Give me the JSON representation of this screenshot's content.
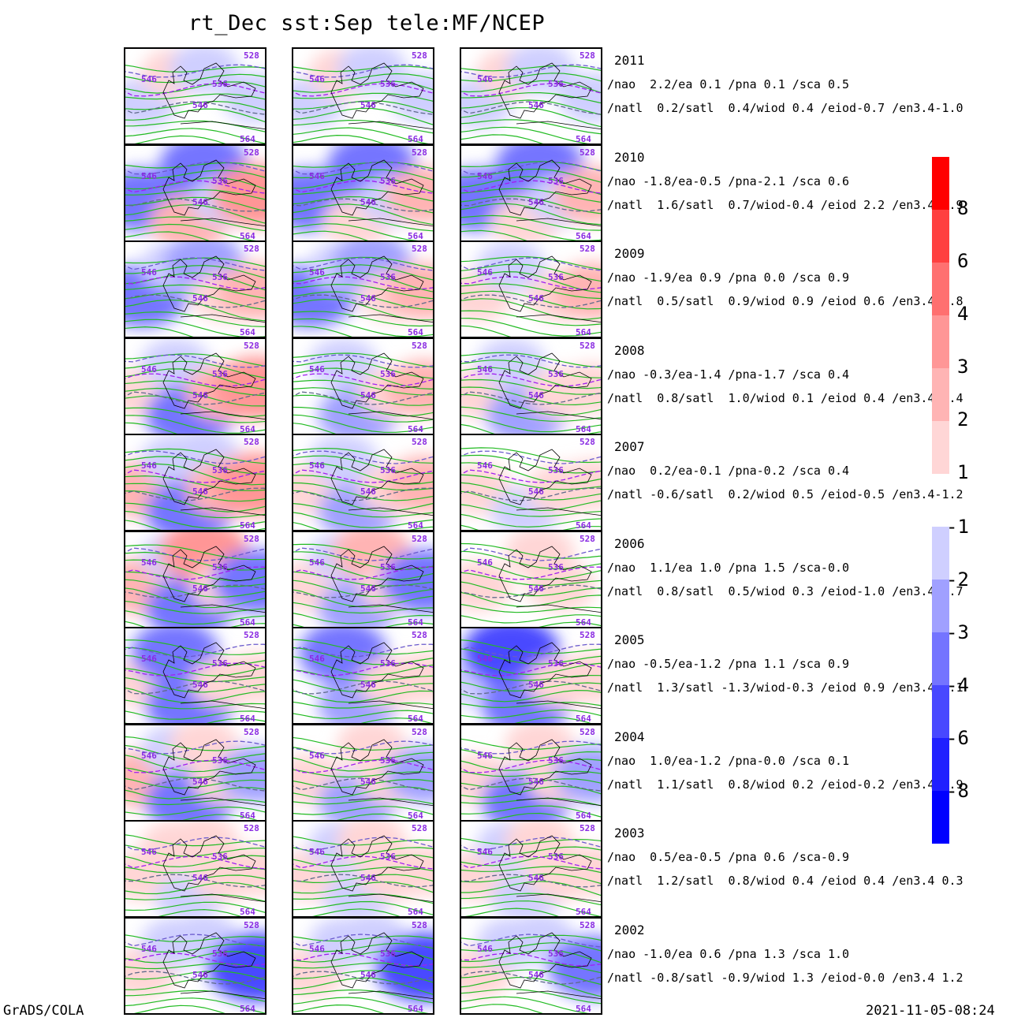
{
  "title": "rt_Dec  sst:Sep  tele:MF/NCEP",
  "footer": {
    "left": "GrADS/COLA",
    "right": "2021-11-05-08:24"
  },
  "chart_data": {
    "type": "heatmap",
    "columns": 3,
    "contour_labels": [
      "528",
      "536",
      "546",
      "564"
    ],
    "rows": [
      {
        "year": "2011",
        "line1": "/nao  2.2/ea 0.1 /pna 0.1 /sca 0.5",
        "line2": "/natl  0.2/satl  0.4/wiod 0.4 /eiod-0.7 /en3.4-1.0"
      },
      {
        "year": "2010",
        "line1": "/nao -1.8/ea-0.5 /pna-2.1 /sca 0.6",
        "line2": "/natl  1.6/satl  0.7/wiod-0.4 /eiod 2.2 /en3.4-1.9"
      },
      {
        "year": "2009",
        "line1": "/nao -1.9/ea 0.9 /pna 0.0 /sca 0.9",
        "line2": "/natl  0.5/satl  0.9/wiod 0.9 /eiod 0.6 /en3.4 0.8"
      },
      {
        "year": "2008",
        "line1": "/nao -0.3/ea-1.4 /pna-1.7 /sca 0.4",
        "line2": "/natl  0.8/satl  1.0/wiod 0.1 /eiod 0.4 /en3.4-0.4"
      },
      {
        "year": "2007",
        "line1": "/nao  0.2/ea-0.1 /pna-0.2 /sca 0.4",
        "line2": "/natl -0.6/satl  0.2/wiod 0.5 /eiod-0.5 /en3.4-1.2"
      },
      {
        "year": "2006",
        "line1": "/nao  1.1/ea 1.0 /pna 1.5 /sca-0.0",
        "line2": "/natl  0.8/satl  0.5/wiod 0.3 /eiod-1.0 /en3.4 0.7"
      },
      {
        "year": "2005",
        "line1": "/nao -0.5/ea-1.2 /pna 1.1 /sca 0.9",
        "line2": "/natl  1.3/satl -1.3/wiod-0.3 /eiod 0.9 /en3.4-0.1"
      },
      {
        "year": "2004",
        "line1": "/nao  1.0/ea-1.2 /pna-0.0 /sca 0.1",
        "line2": "/natl  1.1/satl  0.8/wiod 0.2 /eiod-0.2 /en3.4 0.9"
      },
      {
        "year": "2003",
        "line1": "/nao  0.5/ea-0.5 /pna 0.6 /sca-0.9",
        "line2": "/natl  1.2/satl  0.8/wiod 0.4 /eiod 0.4 /en3.4 0.3"
      },
      {
        "year": "2002",
        "line1": "/nao -1.0/ea 0.6 /pna 1.3 /sca 1.0",
        "line2": "/natl -0.8/satl -0.9/wiod 1.3 /eiod-0.0 /en3.4 1.2"
      }
    ],
    "anomaly_pattern": [
      [
        [
          -1,
          1,
          0,
          -1,
          0,
          -1
        ],
        [
          -1,
          1,
          0,
          -1,
          0,
          -1
        ],
        [
          -1,
          1,
          0,
          -1,
          0,
          -1
        ]
      ],
      [
        [
          -3,
          0,
          2,
          -3,
          -1,
          3
        ],
        [
          -3,
          0,
          1,
          -3,
          -1,
          2
        ],
        [
          -3,
          0,
          1,
          -3,
          -1,
          2
        ]
      ],
      [
        [
          -3,
          -1,
          0,
          -2,
          1,
          2
        ],
        [
          -3,
          -1,
          0,
          -2,
          1,
          2
        ],
        [
          1,
          -1,
          0,
          0,
          1,
          2
        ]
      ],
      [
        [
          1,
          -1,
          -3,
          0,
          2,
          3
        ],
        [
          0,
          -1,
          -2,
          0,
          1,
          2
        ],
        [
          1,
          -1,
          -2,
          0,
          1,
          1
        ]
      ],
      [
        [
          2,
          -1,
          -3,
          -1,
          2,
          3
        ],
        [
          1,
          -1,
          -2,
          0,
          1,
          2
        ],
        [
          1,
          0,
          -1,
          0,
          1,
          1
        ]
      ],
      [
        [
          2,
          -1,
          -3,
          3,
          1,
          -3
        ],
        [
          1,
          -1,
          -2,
          2,
          1,
          -3
        ],
        [
          1,
          0,
          0,
          1,
          1,
          0
        ]
      ],
      [
        [
          1,
          -3,
          -3,
          0,
          1,
          1
        ],
        [
          0,
          -3,
          -2,
          0,
          1,
          1
        ],
        [
          -1,
          -4,
          -3,
          0,
          1,
          1
        ]
      ],
      [
        [
          2,
          -1,
          -3,
          1,
          1,
          -2
        ],
        [
          1,
          0,
          -2,
          1,
          1,
          -2
        ],
        [
          1,
          0,
          -3,
          1,
          1,
          -2
        ]
      ],
      [
        [
          1,
          1,
          -1,
          1,
          1,
          1
        ],
        [
          1,
          -1,
          -1,
          1,
          1,
          1
        ],
        [
          1,
          -1,
          -1,
          1,
          1,
          1
        ]
      ],
      [
        [
          1,
          -1,
          0,
          -1,
          0,
          -4
        ],
        [
          1,
          -1,
          0,
          -1,
          0,
          -4
        ],
        [
          1,
          -1,
          0,
          -1,
          0,
          -3
        ]
      ]
    ]
  },
  "colorbar": {
    "positive": [
      {
        "label": "1",
        "color": "#ffd6d6"
      },
      {
        "label": "2",
        "color": "#ffb4b4"
      },
      {
        "label": "3",
        "color": "#ff9696"
      },
      {
        "label": "4",
        "color": "#ff7070"
      },
      {
        "label": "6",
        "color": "#ff4040"
      },
      {
        "label": "8",
        "color": "#ff0000"
      }
    ],
    "negative": [
      {
        "label": "-1",
        "color": "#cfcfff"
      },
      {
        "label": "-2",
        "color": "#a0a0ff"
      },
      {
        "label": "-3",
        "color": "#7474ff"
      },
      {
        "label": "-4",
        "color": "#4848ff"
      },
      {
        "label": "-6",
        "color": "#2020ff"
      },
      {
        "label": "-8",
        "color": "#0000ff"
      }
    ]
  }
}
